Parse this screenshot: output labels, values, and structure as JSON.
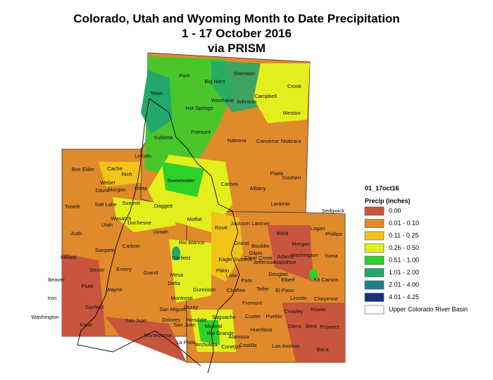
{
  "title": [
    "Colorado, Utah and Wyoming Month to Date Precipitation",
    "1 - 17 October 2016",
    "via PRISM"
  ],
  "legend": {
    "title": "01_17oct16",
    "subtitle": "Precip (inches)",
    "items": [
      {
        "label": "0.00",
        "color": "#c8553d"
      },
      {
        "label": "0.01 - 0.10",
        "color": "#e08a2c"
      },
      {
        "label": "0.11 - 0.25",
        "color": "#f2c318"
      },
      {
        "label": "0.26 - 0.50",
        "color": "#e2ef1c"
      },
      {
        "label": "0.51 - 1.00",
        "color": "#2fd02a"
      },
      {
        "label": "1.01 - 2.00",
        "color": "#22a86b"
      },
      {
        "label": "2.01 - 4.00",
        "color": "#1f7d8c"
      },
      {
        "label": "4.01 - 4.25",
        "color": "#1c2f7a"
      },
      {
        "label": "Upper Colorado River Basin",
        "color": "#ffffff"
      }
    ]
  },
  "counties": [
    "Park",
    "Sheridan",
    "Big Horn",
    "Crook",
    "Campbell",
    "Washakie",
    "Johnson",
    "Teton",
    "Hot Springs",
    "Weston",
    "Fremont",
    "Sublette",
    "Natrona",
    "Converse",
    "Niobrara",
    "Lincoln",
    "Sweetwater",
    "Platte",
    "Goshen",
    "Carbon",
    "Albany",
    "Uinta",
    "Laramie",
    "Box Elder",
    "Cache",
    "Rich",
    "Weber",
    "Davis",
    "Morgan",
    "Tooele",
    "Salt Lake",
    "Summit",
    "Daggett",
    "Wasatch",
    "Utah",
    "Duchesne",
    "Uintah",
    "Juab",
    "Sanpete",
    "Carbon",
    "Millard",
    "Sevier",
    "Emery",
    "Grand",
    "Beaver",
    "Piute",
    "Wayne",
    "Iron",
    "Garfield",
    "San Juan",
    "Washington",
    "Kane",
    "Moffat",
    "Jackson",
    "Larimer",
    "Weld",
    "Logan",
    "Sedgwick",
    "Phillips",
    "Routt",
    "Rio Blanco",
    "Grand",
    "Boulder",
    "Morgan",
    "Gilpin",
    "Clear Creek",
    "Jefferson",
    "Arapahoe",
    "Adams",
    "Washington",
    "Yuma",
    "Garfield",
    "Eagle",
    "Summit",
    "Mesa",
    "Pitkin",
    "Lake",
    "Douglas",
    "Elbert",
    "Kit Carson",
    "Delta",
    "Park",
    "Gunnison",
    "Chaffee",
    "Teller",
    "El Paso",
    "Lincoln",
    "Montrose",
    "Cheyenne",
    "Fremont",
    "San Miguel",
    "Ouray",
    "Hinsdale",
    "San Juan",
    "Dolores",
    "Saguache",
    "Custer",
    "Pueblo",
    "Crowley",
    "Kiowa",
    "Huerfano",
    "Otero",
    "Bent",
    "Prowers",
    "Montezuma",
    "La Plata",
    "Archuleta",
    "Mineral",
    "Rio Grande",
    "Alamosa",
    "Costilla",
    "Conejos",
    "Las Animas",
    "Baca"
  ]
}
